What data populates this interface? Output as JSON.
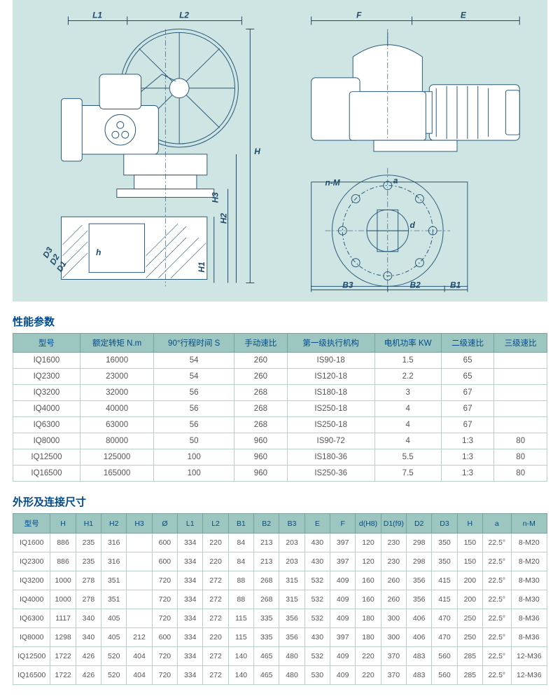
{
  "diagram": {
    "left_dims": {
      "L1": "L1",
      "L2": "L2",
      "H": "H",
      "H1": "H1",
      "H2": "H2",
      "H3": "H3",
      "D1": "D1",
      "D2": "D2",
      "D3": "D3",
      "h": "h"
    },
    "right_dims": {
      "F": "F",
      "E": "E",
      "B1": "B1",
      "B2": "B2",
      "B3": "B3",
      "nM": "n-M",
      "a": "a",
      "d": "d"
    },
    "colors": {
      "panel_bg": "#cfe5e4",
      "line": "#2a5a7a",
      "dim": "#1e4a6a"
    }
  },
  "perf_section": {
    "title": "性能参数",
    "columns": [
      "型号",
      "额定转矩 N.m",
      "90°行程时间 S",
      "手动速比",
      "第一级执行机构",
      "电机功率 KW",
      "二级速比",
      "三级速比"
    ],
    "rows": [
      [
        "IQ1600",
        "16000",
        "54",
        "260",
        "IS90-18",
        "1.5",
        "65",
        ""
      ],
      [
        "IQ2300",
        "23000",
        "54",
        "260",
        "IS120-18",
        "2.2",
        "65",
        ""
      ],
      [
        "IQ3200",
        "32000",
        "56",
        "268",
        "IS180-18",
        "3",
        "67",
        ""
      ],
      [
        "IQ4000",
        "40000",
        "56",
        "268",
        "IS250-18",
        "4",
        "67",
        ""
      ],
      [
        "IQ6300",
        "63000",
        "56",
        "268",
        "IS250-18",
        "4",
        "67",
        ""
      ],
      [
        "IQ8000",
        "80000",
        "50",
        "960",
        "IS90-72",
        "4",
        "1:3",
        "80"
      ],
      [
        "IQ12500",
        "125000",
        "100",
        "960",
        "IS180-36",
        "5.5",
        "1:3",
        "80"
      ],
      [
        "IQ16500",
        "165000",
        "100",
        "960",
        "IS250-36",
        "7.5",
        "1:3",
        "80"
      ]
    ],
    "col_widths": [
      "90",
      "100",
      "110",
      "70",
      "120",
      "90",
      "70",
      "70"
    ]
  },
  "dims_section": {
    "title": "外形及连接尺寸",
    "columns": [
      "型号",
      "H",
      "H1",
      "H2",
      "H3",
      "Ø",
      "L1",
      "L2",
      "B1",
      "B2",
      "B3",
      "E",
      "F",
      "d(H8)",
      "D1(f9)",
      "D2",
      "D3",
      "H",
      "a",
      "n-M"
    ],
    "rows": [
      [
        "IQ1600",
        "886",
        "235",
        "316",
        "",
        "600",
        "334",
        "220",
        "84",
        "213",
        "203",
        "430",
        "397",
        "120",
        "230",
        "298",
        "350",
        "150",
        "22.5°",
        "8-M20"
      ],
      [
        "IQ2300",
        "886",
        "235",
        "316",
        "",
        "600",
        "334",
        "220",
        "84",
        "213",
        "203",
        "430",
        "397",
        "120",
        "230",
        "298",
        "350",
        "150",
        "22.5°",
        "8-M20"
      ],
      [
        "IQ3200",
        "1000",
        "278",
        "351",
        "",
        "720",
        "334",
        "272",
        "88",
        "268",
        "315",
        "532",
        "409",
        "160",
        "260",
        "356",
        "415",
        "200",
        "22.5°",
        "8-M30"
      ],
      [
        "IQ4000",
        "1000",
        "278",
        "351",
        "",
        "720",
        "334",
        "272",
        "88",
        "268",
        "315",
        "532",
        "409",
        "160",
        "260",
        "356",
        "415",
        "200",
        "22.5°",
        "8-M30"
      ],
      [
        "IQ6300",
        "1117",
        "340",
        "405",
        "",
        "720",
        "334",
        "272",
        "115",
        "335",
        "356",
        "532",
        "409",
        "180",
        "300",
        "406",
        "470",
        "250",
        "22.5°",
        "8-M36"
      ],
      [
        "IQ8000",
        "1298",
        "340",
        "405",
        "212",
        "600",
        "334",
        "220",
        "115",
        "335",
        "356",
        "430",
        "397",
        "180",
        "300",
        "406",
        "470",
        "250",
        "22.5°",
        "8-M36"
      ],
      [
        "IQ12500",
        "1722",
        "426",
        "520",
        "404",
        "720",
        "334",
        "272",
        "140",
        "465",
        "480",
        "532",
        "409",
        "220",
        "370",
        "483",
        "560",
        "285",
        "22.5°",
        "12-M36"
      ],
      [
        "IQ16500",
        "1722",
        "426",
        "520",
        "404",
        "720",
        "334",
        "272",
        "140",
        "465",
        "480",
        "530",
        "409",
        "220",
        "370",
        "483",
        "560",
        "285",
        "22.5°",
        "12-M36"
      ]
    ]
  }
}
